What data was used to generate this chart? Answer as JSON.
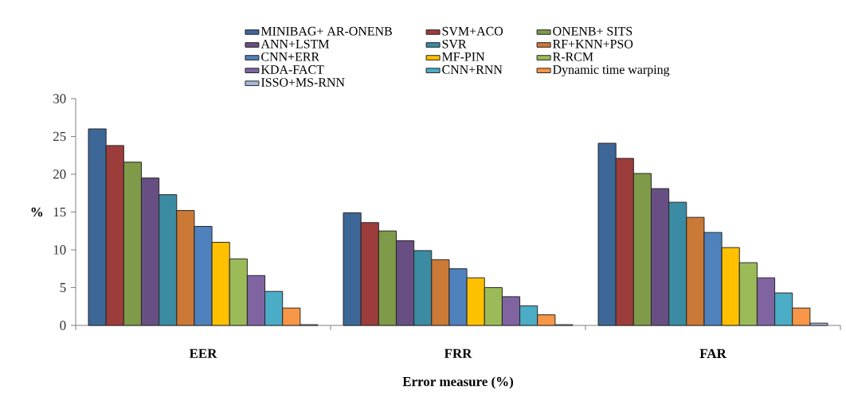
{
  "chart_data": {
    "type": "bar",
    "xlabel": "Error measure (%)",
    "ylabel": "%",
    "categories": [
      "EER",
      "FRR",
      "FAR"
    ],
    "ylim": [
      0,
      30
    ],
    "yticks": [
      0,
      5,
      10,
      15,
      20,
      25,
      30
    ],
    "legend": "top",
    "grid": false,
    "series": [
      {
        "name": "MINIBAG+ AR-ONENB",
        "color": "#3d6797",
        "values": [
          26.0,
          14.9,
          24.1
        ]
      },
      {
        "name": "SVM+ACO",
        "color": "#9c3d3b",
        "values": [
          23.8,
          13.6,
          22.1
        ]
      },
      {
        "name": "ONENB+ SITS",
        "color": "#7f9a48",
        "values": [
          21.6,
          12.5,
          20.1
        ]
      },
      {
        "name": "ANN+LSTM",
        "color": "#674f83",
        "values": [
          19.5,
          11.2,
          18.1
        ]
      },
      {
        "name": "SVR",
        "color": "#3b8ba2",
        "values": [
          17.3,
          9.9,
          16.3
        ]
      },
      {
        "name": "RF+KNN+PSO",
        "color": "#cb7936",
        "values": [
          15.2,
          8.7,
          14.3
        ]
      },
      {
        "name": "CNN+ERR",
        "color": "#4f81bd",
        "values": [
          13.1,
          7.5,
          12.3
        ]
      },
      {
        "name": "MF-PIN",
        "color": "#ffc000",
        "values": [
          11.0,
          6.3,
          10.3
        ]
      },
      {
        "name": "R-RCM",
        "color": "#9bbb59",
        "values": [
          8.8,
          5.0,
          8.3
        ]
      },
      {
        "name": "KDA-FACT",
        "color": "#8064a2",
        "values": [
          6.6,
          3.8,
          6.3
        ]
      },
      {
        "name": "CNN+RNN",
        "color": "#4bacc6",
        "values": [
          4.5,
          2.6,
          4.3
        ]
      },
      {
        "name": "Dynamic time warping",
        "color": "#f79646",
        "values": [
          2.3,
          1.4,
          2.3
        ]
      },
      {
        "name": "ISSO+MS-RNN",
        "color": "#a6b9d9",
        "values": [
          0.1,
          0.1,
          0.3
        ]
      }
    ]
  }
}
